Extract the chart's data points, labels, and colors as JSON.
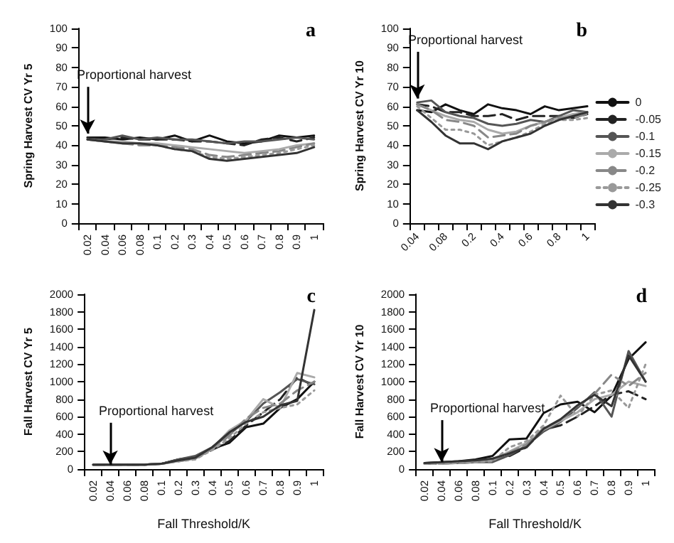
{
  "chart_data": [
    {
      "type": "line",
      "title": "a",
      "ylabel": "Spring Harvest CV Yr 5",
      "categories": [
        "0.02",
        "0.04",
        "0.06",
        "0.08",
        "0.1",
        "0.2",
        "0.3",
        "0.4",
        "0.5",
        "0.6",
        "0.7",
        "0.8",
        "0.9",
        "1"
      ],
      "ylim": [
        0,
        100
      ],
      "yticks": [
        0,
        10,
        20,
        30,
        40,
        50,
        60,
        70,
        80,
        90,
        100
      ],
      "legend": false,
      "annotations": [
        {
          "text": "Proportional harvest",
          "x": "0.02",
          "y": 46
        }
      ],
      "series": [
        {
          "color": "#111111",
          "line_style": "solid",
          "values": [
            44,
            44,
            43,
            44,
            43,
            45,
            42,
            45,
            42,
            41,
            42,
            45,
            44,
            45
          ]
        },
        {
          "color": "#222222",
          "line_style": "dashed",
          "values": [
            44,
            43,
            44,
            43,
            43,
            43,
            42,
            42,
            41,
            40,
            43,
            44,
            42,
            44
          ]
        },
        {
          "color": "#555555",
          "line_style": "solid",
          "values": [
            43,
            43,
            45,
            43,
            44,
            43,
            43,
            42,
            41,
            42,
            42,
            43,
            44,
            43
          ]
        },
        {
          "color": "#aaaaaa",
          "line_style": "solid",
          "values": [
            43,
            42,
            42,
            41,
            41,
            40,
            39,
            38,
            37,
            36,
            37,
            38,
            40,
            41
          ]
        },
        {
          "color": "#888888",
          "line_style": "dashed",
          "values": [
            43,
            42,
            41,
            40,
            40,
            39,
            38,
            35,
            34,
            35,
            36,
            37,
            39,
            41
          ]
        },
        {
          "color": "#999999",
          "line_style": "dotted",
          "values": [
            43,
            42,
            41,
            41,
            40,
            38,
            37,
            34,
            33,
            34,
            35,
            36,
            38,
            40
          ]
        },
        {
          "color": "#333333",
          "line_style": "solid",
          "values": [
            43,
            42,
            41,
            41,
            40,
            38,
            37,
            33,
            32,
            33,
            34,
            35,
            36,
            39
          ]
        }
      ]
    },
    {
      "type": "line",
      "title": "b",
      "ylabel": "Spring Harvest CV Yr 10",
      "categories": [
        "0.04",
        null,
        "0.08",
        null,
        "0.2",
        null,
        "0.4",
        null,
        "0.6",
        null,
        "0.8",
        null,
        "1"
      ],
      "ylim": [
        0,
        100
      ],
      "yticks": [
        0,
        10,
        20,
        30,
        40,
        50,
        60,
        70,
        80,
        90,
        100
      ],
      "legend": "right",
      "annotations": [
        {
          "text": "Proportional harvest",
          "x": "0.04",
          "y": 64
        }
      ],
      "series": [
        {
          "name": "0",
          "color": "#111111",
          "line_style": "solid",
          "values": [
            58,
            57,
            61,
            58,
            56,
            61,
            59,
            58,
            56,
            60,
            58,
            59,
            60
          ]
        },
        {
          "name": "-0.05",
          "color": "#222222",
          "line_style": "dashed",
          "values": [
            61,
            60,
            57,
            57,
            55,
            55,
            56,
            53,
            55,
            55,
            55,
            54,
            56
          ]
        },
        {
          "name": "-0.1",
          "color": "#555555",
          "line_style": "solid",
          "values": [
            62,
            63,
            57,
            55,
            54,
            51,
            50,
            51,
            53,
            52,
            55,
            58,
            57
          ]
        },
        {
          "name": "-0.15",
          "color": "#aaaaaa",
          "line_style": "solid",
          "values": [
            61,
            58,
            55,
            53,
            52,
            48,
            46,
            47,
            50,
            52,
            54,
            56,
            57
          ]
        },
        {
          "name": "-0.2",
          "color": "#888888",
          "line_style": "dashed",
          "values": [
            61,
            58,
            53,
            52,
            50,
            44,
            45,
            46,
            50,
            52,
            54,
            54,
            56
          ]
        },
        {
          "name": "-0.25",
          "color": "#999999",
          "line_style": "dotted",
          "values": [
            60,
            54,
            48,
            48,
            46,
            40,
            42,
            44,
            47,
            51,
            53,
            53,
            54
          ]
        },
        {
          "name": "-0.3",
          "color": "#333333",
          "line_style": "solid",
          "values": [
            58,
            52,
            45,
            41,
            41,
            38,
            42,
            44,
            46,
            50,
            53,
            55,
            57
          ]
        }
      ]
    },
    {
      "type": "line",
      "title": "c",
      "xlabel": "Fall Threshold/K",
      "ylabel": "Fall Harvest CV Yr 5",
      "categories": [
        "0.02",
        "0.04",
        "0.06",
        "0.08",
        "0.1",
        "0.2",
        "0.3",
        "0.4",
        "0.5",
        "0.6",
        "0.7",
        "0.8",
        "0.9",
        "1"
      ],
      "ylim": [
        0,
        2000
      ],
      "yticks": [
        0,
        200,
        400,
        600,
        800,
        1000,
        1200,
        1400,
        1600,
        1800,
        2000
      ],
      "legend": false,
      "annotations": [
        {
          "text": "Proportional harvest",
          "x": "0.04",
          "y": 50
        }
      ],
      "series": [
        {
          "color": "#111111",
          "line_style": "solid",
          "values": [
            50,
            50,
            50,
            50,
            60,
            110,
            140,
            230,
            300,
            480,
            520,
            700,
            800,
            1000
          ]
        },
        {
          "color": "#222222",
          "line_style": "dashed",
          "values": [
            50,
            50,
            50,
            50,
            60,
            100,
            130,
            220,
            320,
            500,
            650,
            800,
            1050,
            950
          ]
        },
        {
          "color": "#555555",
          "line_style": "solid",
          "values": [
            50,
            50,
            50,
            50,
            60,
            110,
            150,
            250,
            400,
            550,
            750,
            880,
            1030,
            970
          ]
        },
        {
          "color": "#aaaaaa",
          "line_style": "solid",
          "values": [
            50,
            50,
            50,
            50,
            60,
            90,
            120,
            240,
            440,
            560,
            800,
            700,
            1100,
            1050
          ]
        },
        {
          "color": "#888888",
          "line_style": "dashed",
          "values": [
            50,
            50,
            50,
            50,
            60,
            90,
            120,
            230,
            380,
            580,
            700,
            750,
            900,
            1000
          ]
        },
        {
          "color": "#999999",
          "line_style": "dotted",
          "values": [
            50,
            50,
            50,
            50,
            60,
            90,
            110,
            220,
            350,
            520,
            650,
            700,
            740,
            900
          ]
        },
        {
          "color": "#333333",
          "line_style": "solid",
          "values": [
            50,
            50,
            50,
            50,
            60,
            100,
            130,
            250,
            420,
            540,
            600,
            730,
            780,
            1820
          ]
        }
      ]
    },
    {
      "type": "line",
      "title": "d",
      "xlabel": "Fall Threshold/K",
      "ylabel": "Fall Harvest CV Yr 10",
      "categories": [
        "0.02",
        "0.04",
        "0.06",
        "0.08",
        "0.1",
        "0.2",
        "0.3",
        "0.4",
        "0.5",
        "0.6",
        "0.7",
        "0.8",
        "0.9",
        "1"
      ],
      "ylim": [
        0,
        2000
      ],
      "yticks": [
        0,
        200,
        400,
        600,
        800,
        1000,
        1200,
        1400,
        1600,
        1800,
        2000
      ],
      "legend": false,
      "annotations": [
        {
          "text": "Proportional harvest",
          "x": "0.04",
          "y": 80
        }
      ],
      "series": [
        {
          "color": "#111111",
          "line_style": "solid",
          "values": [
            70,
            80,
            90,
            110,
            150,
            340,
            350,
            640,
            740,
            770,
            650,
            840,
            1260,
            1450
          ]
        },
        {
          "color": "#222222",
          "line_style": "dashed",
          "values": [
            70,
            70,
            80,
            90,
            100,
            150,
            250,
            450,
            500,
            600,
            720,
            850,
            890,
            800
          ]
        },
        {
          "color": "#555555",
          "line_style": "solid",
          "values": [
            60,
            70,
            70,
            80,
            80,
            160,
            270,
            430,
            540,
            700,
            880,
            600,
            1350,
            1000
          ]
        },
        {
          "color": "#aaaaaa",
          "line_style": "solid",
          "values": [
            70,
            70,
            80,
            90,
            110,
            200,
            300,
            450,
            550,
            650,
            800,
            850,
            1000,
            950
          ]
        },
        {
          "color": "#888888",
          "line_style": "dashed",
          "values": [
            60,
            60,
            70,
            80,
            100,
            190,
            280,
            470,
            560,
            720,
            860,
            1080,
            950,
            1100
          ]
        },
        {
          "color": "#999999",
          "line_style": "dotted",
          "values": [
            60,
            60,
            70,
            80,
            90,
            250,
            320,
            500,
            840,
            600,
            850,
            900,
            700,
            1200
          ]
        },
        {
          "color": "#333333",
          "line_style": "solid",
          "values": [
            70,
            80,
            90,
            100,
            120,
            180,
            250,
            460,
            570,
            730,
            850,
            720,
            1300,
            1000
          ]
        }
      ]
    }
  ]
}
